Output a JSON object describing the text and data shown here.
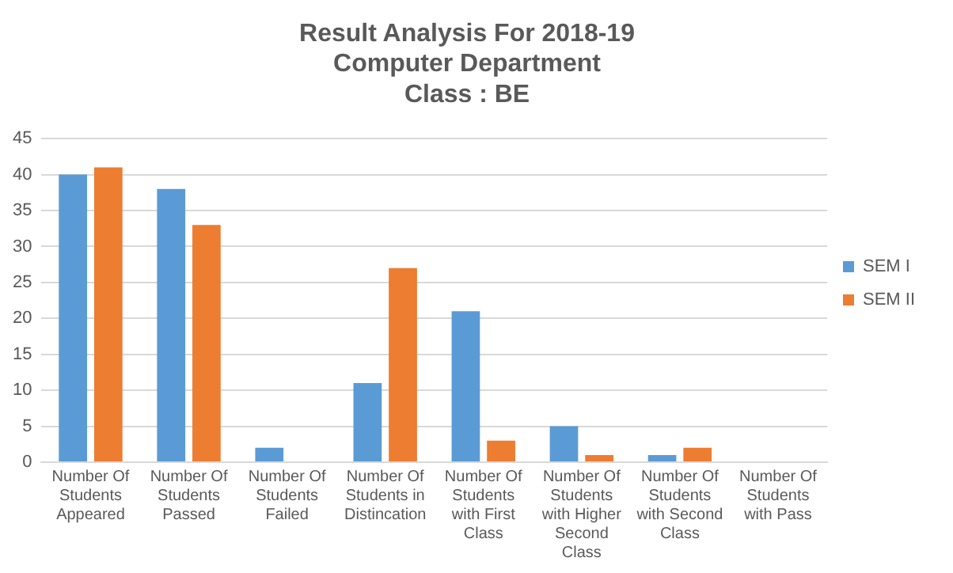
{
  "chart_data": {
    "type": "bar",
    "title": "Result Analysis For 2018-19\nComputer Department\nClass : BE",
    "categories": [
      "Number Of Students Appeared",
      "Number Of Students Passed",
      "Number Of Students Failed",
      "Number Of Students in Distincation",
      "Number Of Students with First Class",
      "Number Of Students with Higher Second Class",
      "Number Of Students with Second Class",
      "Number Of Students with Pass"
    ],
    "series": [
      {
        "name": "SEM I",
        "color": "#5b9bd5",
        "values": [
          40,
          38,
          2,
          11,
          21,
          5,
          1,
          0
        ]
      },
      {
        "name": "SEM II",
        "color": "#ed7d31",
        "values": [
          41,
          33,
          0,
          27,
          3,
          1,
          2,
          0
        ]
      }
    ],
    "ylim": [
      0,
      45
    ],
    "yticks": [
      0,
      5,
      10,
      15,
      20,
      25,
      30,
      35,
      40,
      45
    ],
    "grid": "y",
    "legend": "right"
  }
}
